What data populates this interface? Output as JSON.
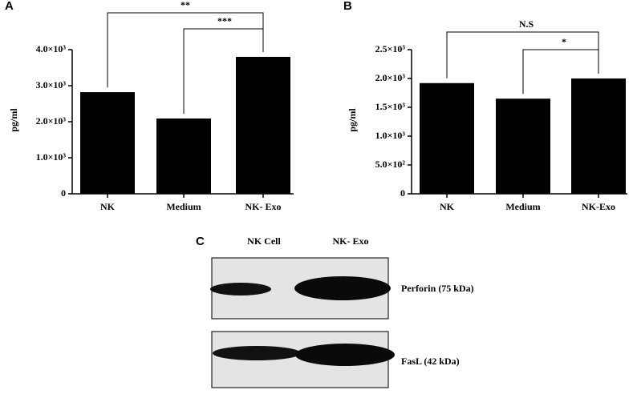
{
  "chart_data": [
    {
      "type": "bar",
      "panel": "A",
      "ylabel": "pg/ml",
      "color": "#000000",
      "categories": [
        "NK",
        "Medium",
        "NK- Exo"
      ],
      "values": [
        2820,
        2090,
        3800
      ],
      "ylim": [
        0,
        4000
      ],
      "yticks": [
        0,
        {
          "value": 1000,
          "label": "1.0×10³"
        },
        {
          "value": 2000,
          "label": "2.0×10³"
        },
        {
          "value": 3000,
          "label": "3.0×10³"
        },
        {
          "value": 4000,
          "label": "4.0×10³"
        }
      ],
      "annotations": [
        "**",
        "***"
      ]
    },
    {
      "type": "bar",
      "panel": "B",
      "ylabel": "pg/ml",
      "color": "#000000",
      "categories": [
        "NK",
        "Medium",
        "NK-Exo"
      ],
      "values": [
        1920,
        1650,
        2000
      ],
      "ylim": [
        0,
        2500
      ],
      "yticks": [
        0,
        {
          "value": 500,
          "label": "5.0×10²"
        },
        {
          "value": 1000,
          "label": "1.0×10³"
        },
        {
          "value": 1500,
          "label": "1.5×10³"
        },
        {
          "value": 2000,
          "label": "2.0×10³"
        },
        {
          "value": 2500,
          "label": "2.5×10³"
        }
      ],
      "annotations": [
        "N.S",
        "*"
      ]
    }
  ],
  "blot": {
    "panel": "C",
    "columns": [
      "NK Cell",
      "NK- Exo"
    ],
    "bands": [
      "Perforin  (75 kDa)",
      "FasL (42 kDa)"
    ]
  }
}
